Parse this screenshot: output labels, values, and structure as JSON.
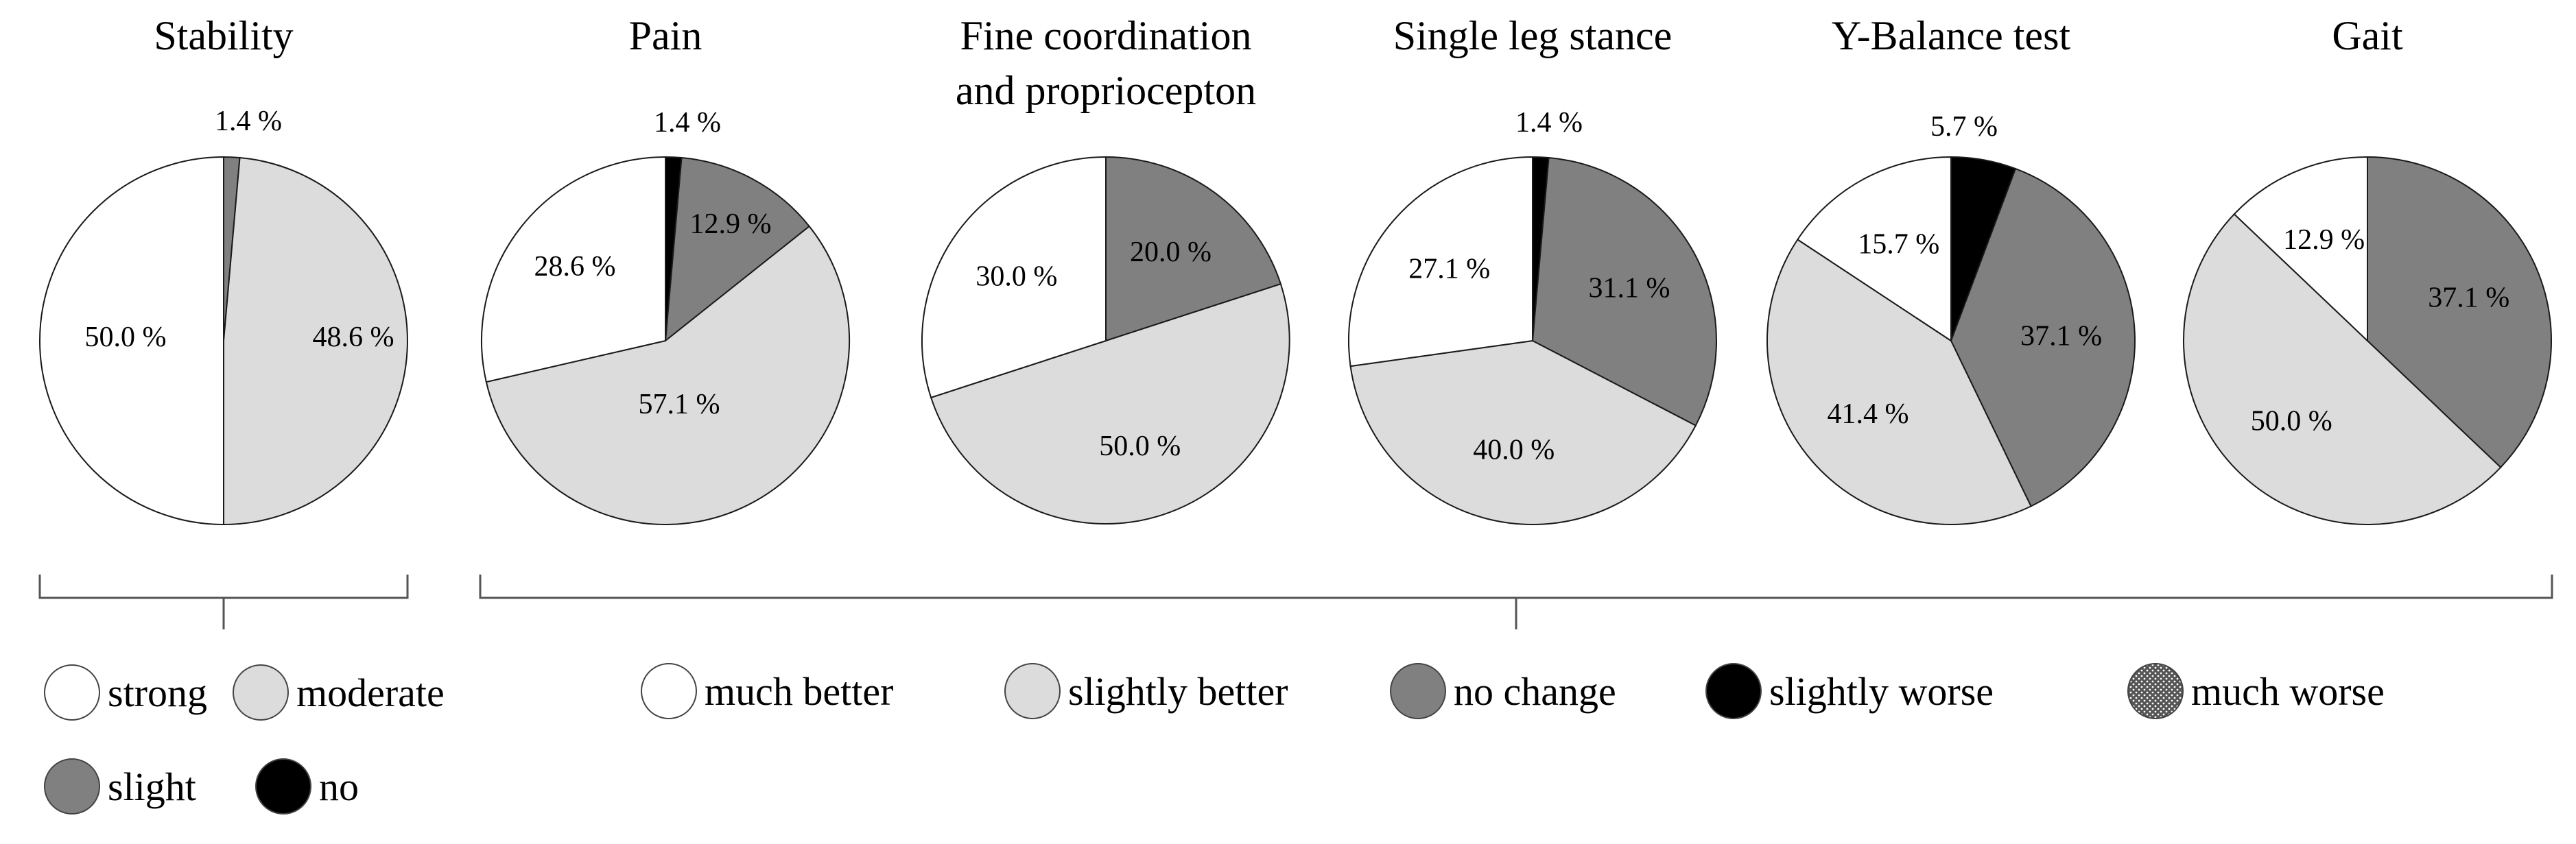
{
  "colors": {
    "strong": "#ffffff",
    "moderate": "#dcdcdc",
    "slight": "#808080",
    "no": "#000000",
    "much_better": "#ffffff",
    "slightly_better": "#dcdcdc",
    "no_change": "#808080",
    "slightly_worse": "#000000",
    "much_worse": "dotted-dark-gray",
    "outline": "#1a1a1a"
  },
  "legend": {
    "stability": [
      {
        "key": "strong",
        "label": "strong"
      },
      {
        "key": "moderate",
        "label": "moderate"
      },
      {
        "key": "slight",
        "label": "slight"
      },
      {
        "key": "no",
        "label": "no"
      }
    ],
    "change": [
      {
        "key": "much_better",
        "label": "much better"
      },
      {
        "key": "slightly_better",
        "label": "slightly better"
      },
      {
        "key": "no_change",
        "label": "no change"
      },
      {
        "key": "slightly_worse",
        "label": "slightly worse"
      },
      {
        "key": "much_worse",
        "label": "much worse"
      }
    ]
  },
  "chart_data": [
    {
      "type": "pie",
      "title": "Stability",
      "legend_group": "stability",
      "slices": [
        {
          "key": "slight",
          "value": 1.4,
          "label": "1.4 %"
        },
        {
          "key": "moderate",
          "value": 48.6,
          "label": "48.6 %"
        },
        {
          "key": "strong",
          "value": 50.0,
          "label": "50.0 %"
        }
      ]
    },
    {
      "type": "pie",
      "title": "Pain",
      "legend_group": "change",
      "slices": [
        {
          "key": "slightly_worse",
          "value": 1.4,
          "label": "1.4 %"
        },
        {
          "key": "no_change",
          "value": 12.9,
          "label": "12.9 %"
        },
        {
          "key": "slightly_better",
          "value": 57.1,
          "label": "57.1 %"
        },
        {
          "key": "much_better",
          "value": 28.6,
          "label": "28.6 %"
        }
      ]
    },
    {
      "type": "pie",
      "title": "Fine coordination\nand propriocepton",
      "legend_group": "change",
      "slices": [
        {
          "key": "no_change",
          "value": 20.0,
          "label": "20.0 %"
        },
        {
          "key": "slightly_better",
          "value": 50.0,
          "label": "50.0 %"
        },
        {
          "key": "much_better",
          "value": 30.0,
          "label": "30.0 %"
        }
      ]
    },
    {
      "type": "pie",
      "title": "Single leg stance",
      "legend_group": "change",
      "slices": [
        {
          "key": "slightly_worse",
          "value": 1.4,
          "label": "1.4 %"
        },
        {
          "key": "no_change",
          "value": 31.1,
          "label": "31.1 %"
        },
        {
          "key": "slightly_better",
          "value": 40.0,
          "label": "40.0 %"
        },
        {
          "key": "much_better",
          "value": 27.1,
          "label": "27.1 %"
        }
      ]
    },
    {
      "type": "pie",
      "title": "Y-Balance test",
      "legend_group": "change",
      "slices": [
        {
          "key": "slightly_worse",
          "value": 5.7,
          "label": "5.7 %"
        },
        {
          "key": "no_change",
          "value": 37.1,
          "label": "37.1 %"
        },
        {
          "key": "slightly_better",
          "value": 41.4,
          "label": "41.4 %"
        },
        {
          "key": "much_better",
          "value": 15.7,
          "label": "15.7 %"
        }
      ]
    },
    {
      "type": "pie",
      "title": "Gait",
      "legend_group": "change",
      "slices": [
        {
          "key": "no_change",
          "value": 37.1,
          "label": "37.1 %"
        },
        {
          "key": "slightly_better",
          "value": 50.0,
          "label": "50.0 %"
        },
        {
          "key": "much_better",
          "value": 12.9,
          "label": "12.9 %"
        }
      ]
    }
  ]
}
